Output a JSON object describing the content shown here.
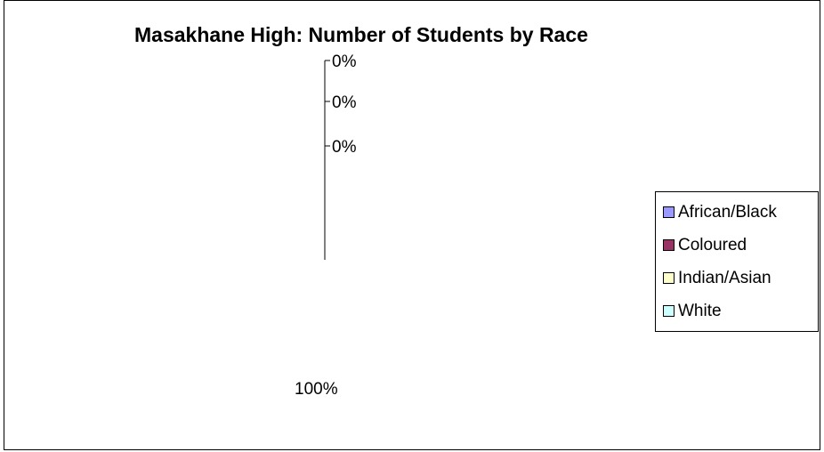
{
  "chart_data": {
    "type": "pie",
    "title": "Masakhane High: Number of Students by Race",
    "categories": [
      "African/Black",
      "Coloured",
      "Indian/Asian",
      "White"
    ],
    "values": [
      100,
      0,
      0,
      0
    ],
    "data_labels": [
      "100%",
      "0%",
      "0%",
      "0%"
    ],
    "colors": [
      "#9999ff",
      "#993366",
      "#ffffcc",
      "#ccffff"
    ],
    "legend": {
      "position": "right",
      "entries": [
        "African/Black",
        "Coloured",
        "Indian/Asian",
        "White"
      ]
    }
  }
}
